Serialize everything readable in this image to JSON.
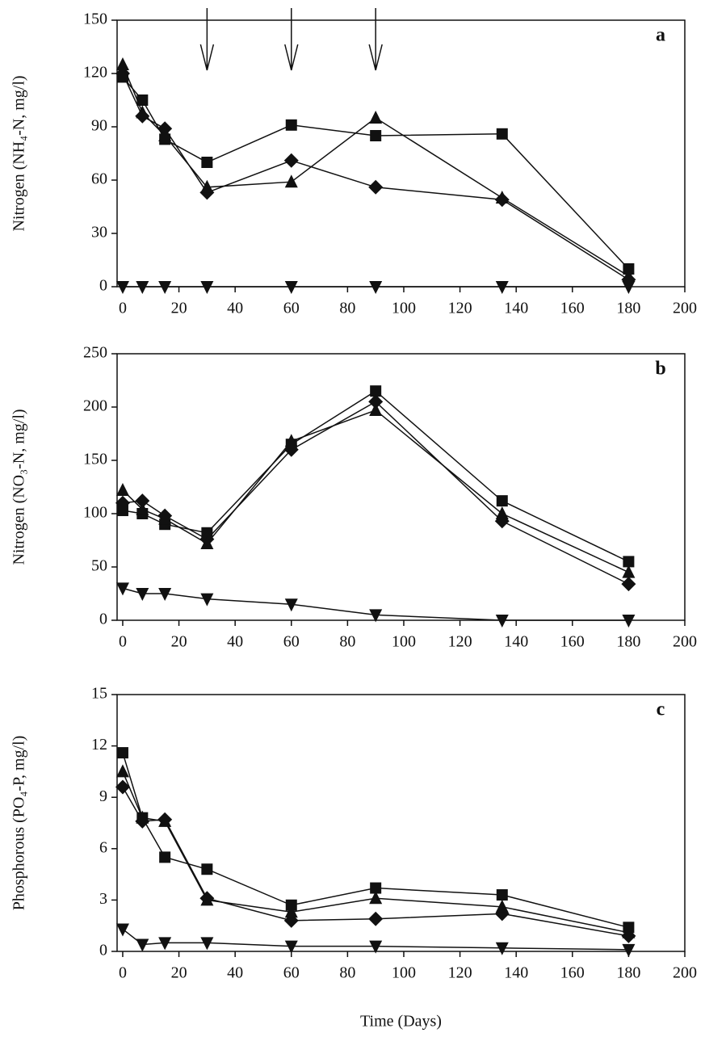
{
  "chart_data": [
    {
      "type": "line",
      "label": "a",
      "ylabel": "Nitrogen (NH₄-N, mg/l)",
      "x": [
        0,
        7,
        15,
        30,
        60,
        90,
        135,
        180
      ],
      "xlim": [
        -2,
        200
      ],
      "xticks": [
        0,
        20,
        40,
        60,
        80,
        100,
        120,
        140,
        160,
        180,
        200
      ],
      "ylim": [
        0,
        150
      ],
      "yticks": [
        0,
        30,
        60,
        90,
        120,
        150
      ],
      "arrows": [
        30,
        60,
        90
      ],
      "series": [
        {
          "marker": "square",
          "color": "#111111",
          "values": [
            118,
            105,
            83,
            70,
            91,
            85,
            86,
            10
          ]
        },
        {
          "marker": "diamond",
          "color": "#111111",
          "values": [
            120,
            96,
            89,
            53,
            71,
            56,
            49,
            4
          ]
        },
        {
          "marker": "triangle",
          "color": "#111111",
          "values": [
            125,
            98,
            85,
            56,
            59,
            95,
            50,
            6
          ]
        },
        {
          "marker": "triangle-down",
          "color": "#111111",
          "values": [
            0,
            0,
            0,
            0,
            0,
            0,
            0,
            0
          ]
        }
      ]
    },
    {
      "type": "line",
      "label": "b",
      "ylabel": "Nitrogen (NO₃-N, mg/l)",
      "x": [
        0,
        7,
        15,
        30,
        60,
        90,
        135,
        180
      ],
      "xlim": [
        -2,
        200
      ],
      "xticks": [
        0,
        20,
        40,
        60,
        80,
        100,
        120,
        140,
        160,
        180,
        200
      ],
      "ylim": [
        0,
        250
      ],
      "yticks": [
        0,
        50,
        100,
        150,
        200,
        250
      ],
      "series": [
        {
          "marker": "square",
          "color": "#111111",
          "values": [
            103,
            100,
            90,
            82,
            165,
            215,
            112,
            55
          ]
        },
        {
          "marker": "diamond",
          "color": "#111111",
          "values": [
            110,
            112,
            98,
            76,
            160,
            205,
            93,
            34
          ]
        },
        {
          "marker": "triangle",
          "color": "#111111",
          "values": [
            122,
            104,
            95,
            72,
            168,
            197,
            100,
            45
          ]
        },
        {
          "marker": "triangle-down",
          "color": "#111111",
          "values": [
            30,
            25,
            25,
            20,
            15,
            5,
            0,
            0
          ]
        }
      ]
    },
    {
      "type": "line",
      "label": "c",
      "ylabel": "Phosphorous (PO₄-P, mg/l)",
      "xlabel": "Time (Days)",
      "x": [
        0,
        7,
        15,
        30,
        60,
        90,
        135,
        180
      ],
      "xlim": [
        -2,
        200
      ],
      "xticks": [
        0,
        20,
        40,
        60,
        80,
        100,
        120,
        140,
        160,
        180,
        200
      ],
      "ylim": [
        0,
        15
      ],
      "yticks": [
        0,
        3,
        6,
        9,
        12,
        15
      ],
      "series": [
        {
          "marker": "square",
          "color": "#111111",
          "values": [
            11.6,
            7.8,
            5.5,
            4.8,
            2.7,
            3.7,
            3.3,
            1.4
          ]
        },
        {
          "marker": "diamond",
          "color": "#111111",
          "values": [
            9.6,
            7.6,
            7.7,
            3.1,
            1.8,
            1.9,
            2.2,
            0.9
          ]
        },
        {
          "marker": "triangle",
          "color": "#111111",
          "values": [
            10.5,
            7.8,
            7.6,
            3.0,
            2.3,
            3.1,
            2.6,
            1.1
          ]
        },
        {
          "marker": "triangle-down",
          "color": "#111111",
          "values": [
            1.3,
            0.4,
            0.5,
            0.5,
            0.3,
            0.3,
            0.2,
            0.1
          ]
        }
      ]
    }
  ]
}
